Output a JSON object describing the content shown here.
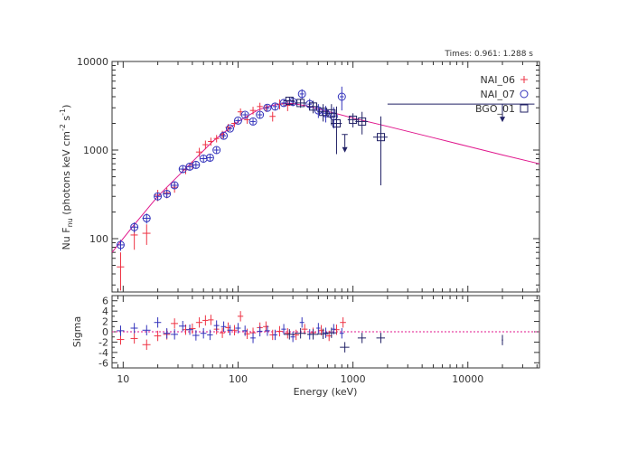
{
  "chart_data": {
    "type": "scatter",
    "header": "Times: 0.961: 1.288 s",
    "xlabel": "Energy (keV)",
    "ylabel_main": "Nu F",
    "ylabel_main_sub": "nu",
    "ylabel_main_rest": " (photons keV cm",
    "ylabel_main_sup1": "-2",
    "ylabel_main_mid": " s",
    "ylabel_main_sup2": "-1",
    "ylabel_main_end": ")",
    "ylabel_resid": "Sigma",
    "xscale": "log",
    "yscale_main": "log",
    "xlim": [
      8,
      42000
    ],
    "ylim_main": [
      25,
      10000
    ],
    "ylim_resid": [
      -7,
      7
    ],
    "x_tick_labels": [
      "10",
      "100",
      "1000",
      "10000"
    ],
    "y_main_tick_labels": [
      "100",
      "1000",
      "10000"
    ],
    "y_resid_tick_labels": [
      "6",
      "4",
      "2",
      "0",
      "-2",
      "-4",
      "-6"
    ],
    "legend_position": "top-right",
    "colors": {
      "nai06": "#ee3344",
      "nai07": "#3333bb",
      "bgo": "#222266",
      "model": "#e0168c",
      "axis": "#333333"
    },
    "series": [
      {
        "name": "NAI_06",
        "marker": "plus",
        "x": [
          9.5,
          12.5,
          16,
          20,
          24,
          28,
          35,
          40,
          46,
          52,
          58,
          65,
          73,
          82,
          93,
          105,
          120,
          135,
          155,
          175,
          200,
          230,
          270
        ],
        "y": [
          48,
          110,
          115,
          310,
          330,
          380,
          600,
          680,
          950,
          1150,
          1250,
          1350,
          1500,
          1800,
          2000,
          2700,
          2200,
          2800,
          3100,
          3000,
          2400,
          3300,
          3200
        ],
        "xerr": [
          0.7,
          0.9,
          1.3,
          1.4,
          1.7,
          2,
          2.4,
          2.7,
          3,
          3,
          3.3,
          3.5,
          4,
          4.5,
          5.5,
          6,
          7,
          8,
          9,
          10,
          12,
          14,
          16
        ],
        "yerr": [
          22,
          35,
          30,
          45,
          45,
          50,
          65,
          70,
          110,
          130,
          130,
          130,
          150,
          170,
          190,
          250,
          220,
          280,
          320,
          300,
          300,
          420,
          450
        ],
        "resid_x": [
          9.5,
          12.5,
          16,
          20,
          24,
          28,
          35,
          40,
          46,
          52,
          58,
          65,
          73,
          82,
          93,
          105,
          120,
          135,
          155,
          175,
          200,
          230,
          270,
          320,
          380,
          450,
          530,
          620,
          720,
          820
        ],
        "resid": [
          -1.5,
          -1.3,
          -2.5,
          -0.8,
          -0.5,
          1.6,
          0.4,
          0.6,
          1.8,
          2.2,
          2.3,
          0.5,
          -0.2,
          0.8,
          0.3,
          3.0,
          -0.4,
          -0.2,
          0.8,
          1.0,
          -0.6,
          0.1,
          -0.3,
          -0.6,
          0.5,
          -0.2,
          0.3,
          -0.8,
          0.4,
          1.8
        ]
      },
      {
        "name": "NAI_07",
        "marker": "circle",
        "x": [
          9.5,
          12.5,
          16,
          20,
          24,
          28,
          33,
          38,
          43,
          50,
          57,
          65,
          75,
          85,
          100,
          115,
          135,
          155,
          180,
          210,
          250,
          300,
          360,
          420,
          500,
          580,
          680,
          800
        ],
        "y": [
          85,
          135,
          170,
          300,
          320,
          400,
          610,
          650,
          680,
          800,
          820,
          1000,
          1450,
          1750,
          2150,
          2500,
          2100,
          2500,
          3000,
          3100,
          3400,
          3500,
          4300,
          3300,
          2800,
          2600,
          2400,
          4000
        ],
        "xerr": [
          0.7,
          0.9,
          1.3,
          1.4,
          1.7,
          2,
          2.4,
          2.7,
          3,
          3,
          3.3,
          3.5,
          4,
          4.5,
          5.5,
          6,
          7,
          8,
          9,
          10,
          12,
          14,
          16,
          18,
          20,
          24,
          28,
          34
        ],
        "yerr": [
          12,
          18,
          22,
          30,
          30,
          35,
          55,
          55,
          55,
          65,
          65,
          80,
          100,
          110,
          140,
          170,
          160,
          200,
          240,
          260,
          300,
          380,
          550,
          480,
          500,
          550,
          650,
          1200
        ],
        "resid_x": [
          9.5,
          12.5,
          16,
          20,
          24,
          28,
          33,
          38,
          43,
          50,
          57,
          65,
          75,
          85,
          100,
          115,
          135,
          155,
          180,
          210,
          250,
          300,
          360,
          420,
          500,
          580,
          680,
          800
        ],
        "resid": [
          0.2,
          0.7,
          0.3,
          1.8,
          -0.3,
          -0.5,
          1.1,
          0.4,
          -0.7,
          -0.3,
          -0.6,
          1.2,
          1.0,
          0.3,
          0.7,
          0.2,
          -1.2,
          0.1,
          0.2,
          -0.6,
          0.5,
          -1.0,
          1.8,
          -0.5,
          0.7,
          -0.2,
          0.5,
          -0.3
        ]
      },
      {
        "name": "BGO_01",
        "marker": "square",
        "x": [
          280,
          350,
          450,
          550,
          650,
          720,
          1000,
          1200,
          1750
        ],
        "y": [
          3600,
          3400,
          3100,
          2700,
          2600,
          2000,
          2200,
          2100,
          1400
        ],
        "xerr": [
          30,
          40,
          50,
          60,
          70,
          80,
          100,
          150,
          250
        ],
        "yerr": [
          400,
          400,
          500,
          600,
          700,
          1100,
          400,
          600,
          1000
        ],
        "upper_limit_x": [
          850,
          20000
        ],
        "upper_limit_y": [
          1500,
          3300
        ],
        "upper_limit_xerr": [
          50,
          18000
        ],
        "resid_x": [
          280,
          350,
          450,
          550,
          650,
          850,
          1200,
          1750,
          20000
        ],
        "resid": [
          -0.5,
          -0.3,
          -0.5,
          -0.4,
          -0.2,
          -3.0,
          -1.2,
          -1.2,
          -1.6
        ]
      }
    ],
    "model": {
      "x": [
        8,
        12,
        20,
        35,
        60,
        100,
        150,
        200,
        250,
        300,
        400,
        700,
        1000,
        2000,
        5000,
        10000,
        20000,
        42000
      ],
      "y": [
        70,
        135,
        300,
        620,
        1250,
        2100,
        2850,
        3200,
        3350,
        3350,
        3150,
        2600,
        2300,
        1850,
        1380,
        1100,
        880,
        700
      ]
    }
  }
}
